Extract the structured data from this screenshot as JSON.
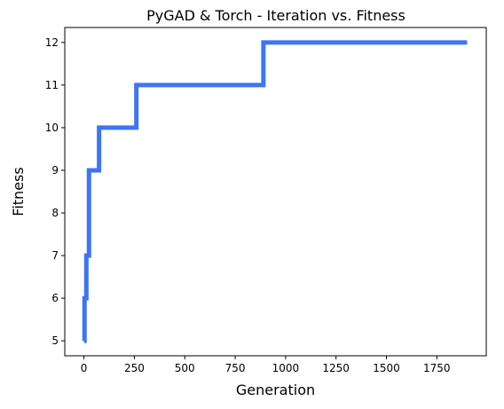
{
  "chart_data": {
    "type": "line",
    "title": "PyGAD & Torch - Iteration vs. Fitness",
    "xlabel": "Generation",
    "ylabel": "Fitness",
    "xlim": [
      -95,
      1995
    ],
    "ylim": [
      4.65,
      12.35
    ],
    "xticks": [
      "0",
      "250",
      "500",
      "750",
      "1000",
      "1250",
      "1500",
      "1750"
    ],
    "yticks": [
      "5",
      "6",
      "7",
      "8",
      "9",
      "10",
      "11",
      "12"
    ],
    "grid": false,
    "line_color": "#3D75F5",
    "series": [
      {
        "name": "",
        "x": [
          0,
          3,
          3,
          12,
          12,
          25,
          25,
          75,
          75,
          260,
          260,
          890,
          890,
          1900
        ],
        "y": [
          5,
          5,
          6,
          6,
          7,
          7,
          9,
          9,
          10,
          10,
          11,
          11,
          12,
          12
        ]
      }
    ]
  }
}
